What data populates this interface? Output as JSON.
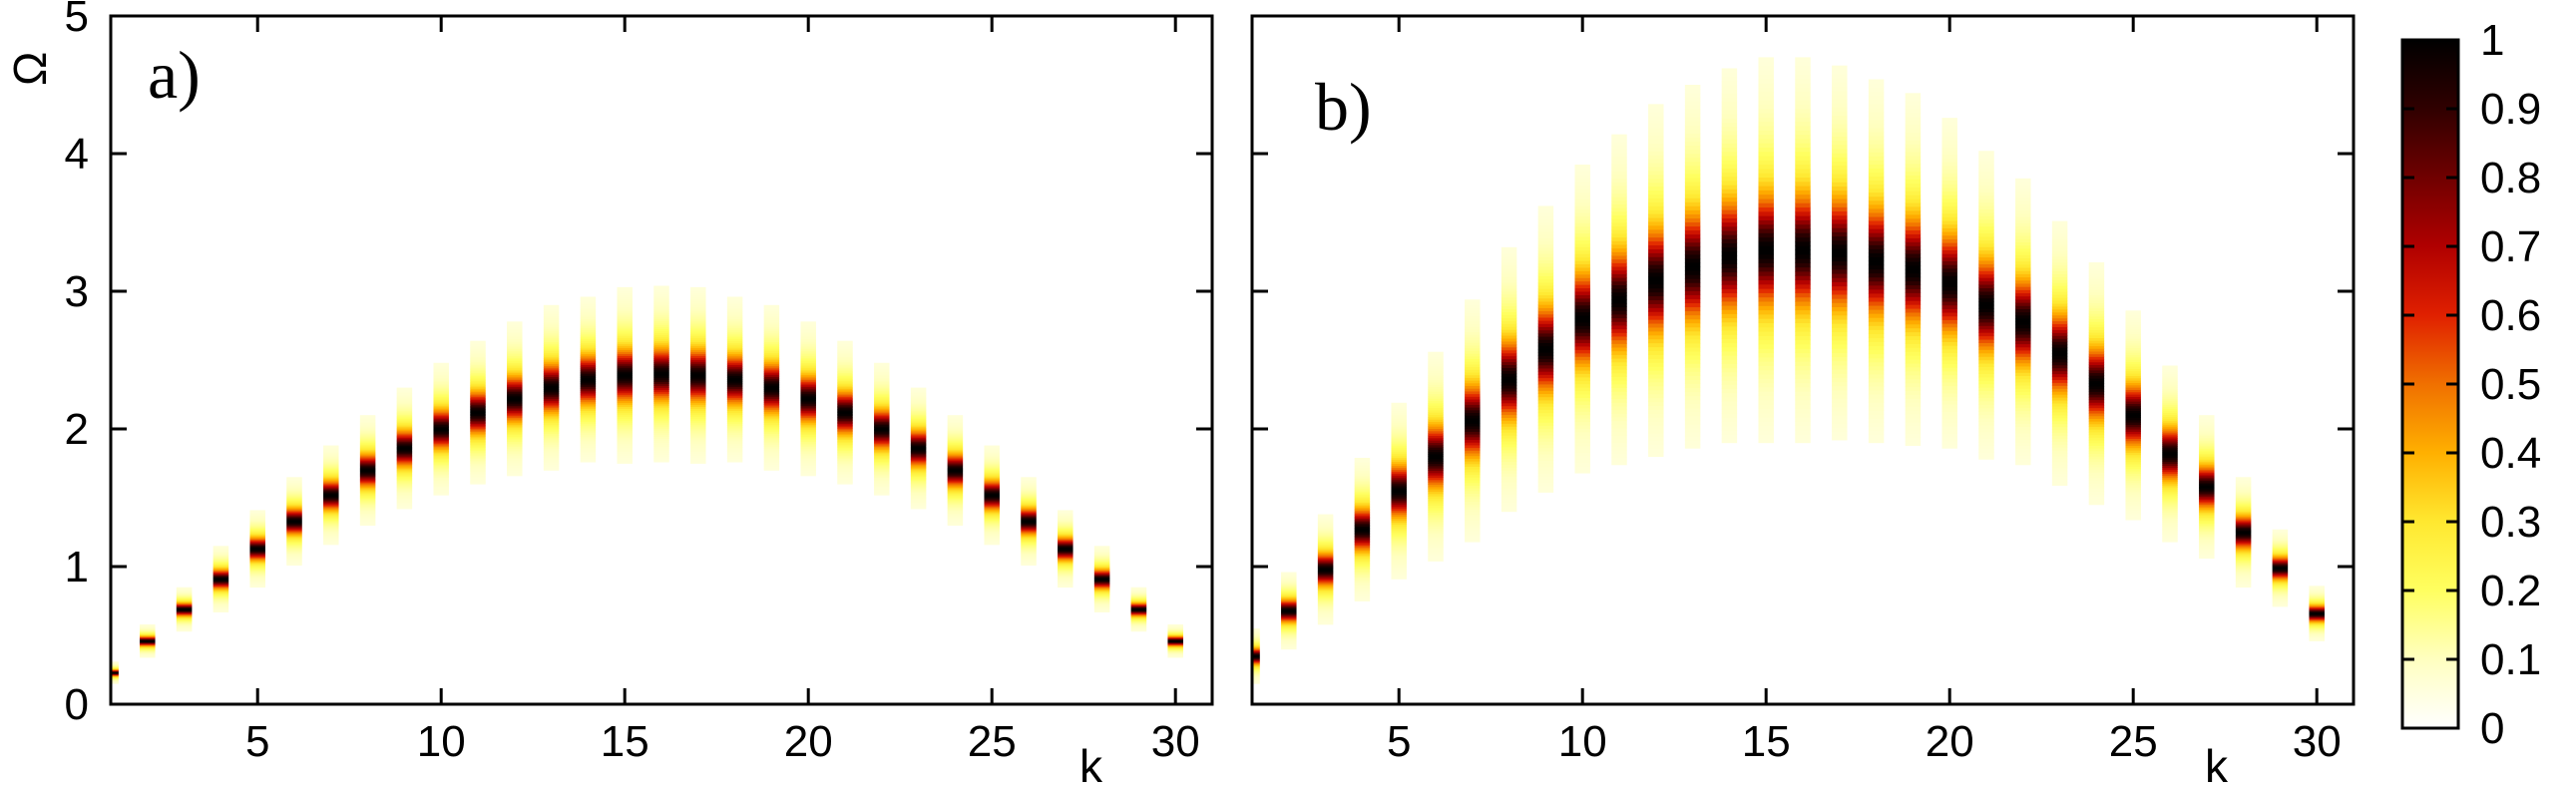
{
  "chart_data": [
    {
      "type": "heatmap",
      "panel_label": "a)",
      "xlabel": "k",
      "ylabel": "Ω",
      "xlim": [
        1,
        31
      ],
      "ylim": [
        0,
        5
      ],
      "xticks": [
        5,
        10,
        15,
        20,
        25,
        30
      ],
      "yticks": [
        0,
        1,
        2,
        3,
        4,
        5
      ],
      "series": {
        "k": [
          1,
          2,
          3,
          4,
          5,
          6,
          7,
          8,
          9,
          10,
          11,
          12,
          13,
          14,
          15,
          16,
          17,
          18,
          19,
          20,
          21,
          22,
          23,
          24,
          25,
          26,
          27,
          28,
          29,
          30
        ],
        "peak_omega": [
          0.23,
          0.46,
          0.69,
          0.91,
          1.13,
          1.33,
          1.52,
          1.7,
          1.86,
          2.0,
          2.12,
          2.22,
          2.3,
          2.36,
          2.39,
          2.4,
          2.39,
          2.36,
          2.3,
          2.22,
          2.12,
          2.0,
          1.86,
          1.7,
          1.52,
          1.33,
          1.13,
          0.91,
          0.69,
          0.46
        ],
        "width": [
          0.02,
          0.03,
          0.04,
          0.06,
          0.07,
          0.08,
          0.09,
          0.1,
          0.11,
          0.12,
          0.13,
          0.14,
          0.15,
          0.15,
          0.16,
          0.16,
          0.16,
          0.15,
          0.15,
          0.14,
          0.13,
          0.12,
          0.11,
          0.1,
          0.09,
          0.08,
          0.07,
          0.06,
          0.04,
          0.03
        ]
      },
      "grid": false
    },
    {
      "type": "heatmap",
      "panel_label": "b)",
      "xlabel": "k",
      "ylabel": "",
      "xlim": [
        1,
        31
      ],
      "ylim": [
        0,
        5
      ],
      "xticks": [
        5,
        10,
        15,
        20,
        25,
        30
      ],
      "yticks": [
        0,
        1,
        2,
        3,
        4,
        5
      ],
      "series": {
        "k": [
          1,
          2,
          3,
          4,
          5,
          6,
          7,
          8,
          9,
          10,
          11,
          12,
          13,
          14,
          15,
          16,
          17,
          18,
          19,
          20,
          21,
          22,
          23,
          24,
          25,
          26,
          27,
          28,
          29,
          30
        ],
        "peak_omega": [
          0.35,
          0.68,
          0.98,
          1.27,
          1.55,
          1.8,
          2.06,
          2.36,
          2.58,
          2.8,
          2.94,
          3.08,
          3.18,
          3.26,
          3.3,
          3.3,
          3.28,
          3.22,
          3.16,
          3.06,
          2.9,
          2.78,
          2.55,
          2.33,
          2.1,
          1.82,
          1.58,
          1.25,
          0.99,
          0.66
        ],
        "width": [
          0.05,
          0.07,
          0.1,
          0.13,
          0.16,
          0.19,
          0.22,
          0.24,
          0.26,
          0.28,
          0.3,
          0.32,
          0.33,
          0.34,
          0.35,
          0.35,
          0.34,
          0.33,
          0.32,
          0.3,
          0.28,
          0.26,
          0.24,
          0.22,
          0.19,
          0.16,
          0.13,
          0.1,
          0.07,
          0.05
        ]
      },
      "grid": false
    }
  ],
  "colorbar": {
    "min": 0,
    "max": 1,
    "tick_labels": [
      "0",
      "0.1",
      "0.2",
      "0.3",
      "0.4",
      "0.5",
      "0.6",
      "0.7",
      "0.8",
      "0.9",
      "1"
    ],
    "colormap": [
      "#ffffff",
      "#ffffc0",
      "#ffff60",
      "#ffe830",
      "#ffb000",
      "#f07000",
      "#e02000",
      "#b00000",
      "#700000",
      "#300000",
      "#000000"
    ]
  }
}
